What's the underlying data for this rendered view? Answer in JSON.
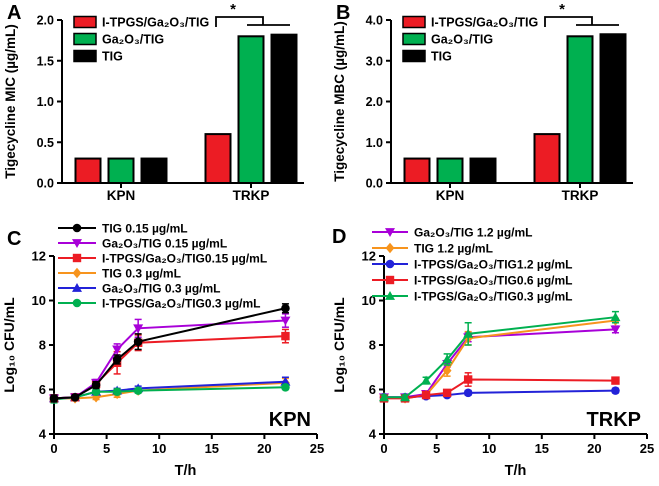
{
  "colors": {
    "red": "#EC1C24",
    "green": "#00B050",
    "black": "#000000",
    "purple": "#A800D8",
    "orange": "#F7941D",
    "blue": "#2222D8"
  },
  "chart_data": [
    {
      "id": "A",
      "panel_label": "A",
      "type": "bar",
      "ylabel": "Tigecycline MIC (µg/mL)",
      "ylim": [
        0,
        2.0
      ],
      "ytick_values": [
        0,
        0.5,
        1.0,
        1.5,
        2.0
      ],
      "ytick_labels": [
        "0.0",
        "0.5",
        "1.0",
        "1.5",
        "2.0"
      ],
      "categories": [
        "KPN",
        "TRKP"
      ],
      "series": [
        {
          "name": "I-TPGS/Ga₂O₃/TIG",
          "color": "red",
          "values": [
            0.3,
            0.6
          ]
        },
        {
          "name": "Ga₂O₃/TIG",
          "color": "green",
          "values": [
            0.3,
            1.8
          ]
        },
        {
          "name": "TIG",
          "color": "black",
          "values": [
            0.3,
            1.82
          ]
        }
      ],
      "significance_label": "*"
    },
    {
      "id": "B",
      "panel_label": "B",
      "type": "bar",
      "ylabel": "Tigecycline MBC (µg/mL)",
      "ylim": [
        0,
        4.0
      ],
      "ytick_values": [
        0,
        1.0,
        2.0,
        3.0,
        4.0
      ],
      "ytick_labels": [
        "0.0",
        "1.0",
        "2.0",
        "3.0",
        "4.0"
      ],
      "categories": [
        "KPN",
        "TRKP"
      ],
      "series": [
        {
          "name": "I-TPGS/Ga₂O₃/TIG",
          "color": "red",
          "values": [
            0.6,
            1.2
          ]
        },
        {
          "name": "Ga₂O₃/TIG",
          "color": "green",
          "values": [
            0.6,
            3.6
          ]
        },
        {
          "name": "TIG",
          "color": "black",
          "values": [
            0.6,
            3.65
          ]
        }
      ],
      "significance_label": "*"
    },
    {
      "id": "C",
      "panel_label": "C",
      "type": "line",
      "corner_label": "KPN",
      "xlabel": "T/h",
      "ylabel": "Log₁₀ CFU/mL",
      "xlim": [
        0,
        25
      ],
      "ylim": [
        4,
        12
      ],
      "xticks": [
        0,
        5,
        10,
        15,
        20,
        25
      ],
      "yticks": [
        4,
        6,
        8,
        10,
        12
      ],
      "x": [
        0,
        2,
        4,
        6,
        8,
        22
      ],
      "series": [
        {
          "name": "TIG 0.15 µg/mL",
          "color": "black",
          "marker": "circle",
          "values": [
            5.6,
            5.65,
            6.2,
            7.35,
            8.15,
            9.65
          ],
          "err": [
            0.15,
            0.1,
            0.15,
            0.2,
            0.35,
            0.2
          ]
        },
        {
          "name": "Ga₂O₃/TIG 0.15 µg/mL",
          "color": "purple",
          "marker": "triangle-down",
          "values": [
            5.6,
            5.65,
            6.3,
            7.8,
            8.75,
            9.1
          ],
          "err": [
            0.15,
            0.1,
            0.15,
            0.25,
            0.4,
            0.3
          ]
        },
        {
          "name": "I-TPGS/Ga₂O₃/TIG0.15 µg/mL",
          "color": "red",
          "marker": "square",
          "values": [
            5.6,
            5.65,
            6.25,
            7.2,
            8.1,
            8.4
          ],
          "err": [
            0.15,
            0.1,
            0.15,
            0.5,
            0.35,
            0.3
          ]
        },
        {
          "name": "TIG 0.3 µg/mL",
          "color": "orange",
          "marker": "diamond",
          "values": [
            5.6,
            5.6,
            5.65,
            5.8,
            5.95,
            6.3
          ],
          "err": [
            0.1,
            0.1,
            0.1,
            0.15,
            0.1,
            0.2
          ]
        },
        {
          "name": "Ga₂O₃/TIG 0.3 µg/mL",
          "color": "blue",
          "marker": "triangle-up",
          "values": [
            5.6,
            5.65,
            5.9,
            5.95,
            6.05,
            6.35
          ],
          "err": [
            0.1,
            0.1,
            0.1,
            0.1,
            0.1,
            0.2
          ]
        },
        {
          "name": "I-TPGS/Ga₂O₃/TIG0.3 µg/mL",
          "color": "green",
          "marker": "circle",
          "values": [
            5.55,
            5.65,
            5.9,
            5.9,
            5.95,
            6.1
          ],
          "err": [
            0.15,
            0.1,
            0.1,
            0.1,
            0.1,
            0.1
          ]
        }
      ],
      "z_order": [
        3,
        4,
        5,
        2,
        1,
        0
      ]
    },
    {
      "id": "D",
      "panel_label": "D",
      "type": "line",
      "corner_label": "TRKP",
      "xlabel": "T/h",
      "ylabel": "Log₁₀ CFU/mL",
      "xlim": [
        0,
        25
      ],
      "ylim": [
        4,
        12
      ],
      "xticks": [
        0,
        5,
        10,
        15,
        20,
        25
      ],
      "yticks": [
        4,
        6,
        8,
        10,
        12
      ],
      "x": [
        0,
        2,
        4,
        6,
        8,
        22
      ],
      "series": [
        {
          "name": "Ga₂O₃/TIG 1.2 µg/mL",
          "color": "purple",
          "marker": "triangle-down",
          "values": [
            5.65,
            5.65,
            5.8,
            7.15,
            8.35,
            8.7
          ],
          "err": [
            0.1,
            0.1,
            0.1,
            0.15,
            0.2,
            0.15
          ]
        },
        {
          "name": "TIG 1.2 µg/mL",
          "color": "orange",
          "marker": "diamond",
          "values": [
            5.65,
            5.6,
            5.75,
            6.85,
            8.3,
            9.1
          ],
          "err": [
            0.1,
            0.15,
            0.1,
            0.25,
            0.3,
            0.1
          ]
        },
        {
          "name": "I-TPGS/Ga₂O₃/TIG1.2 µg/mL",
          "color": "blue",
          "marker": "circle",
          "values": [
            5.65,
            5.65,
            5.7,
            5.75,
            5.85,
            5.95
          ],
          "err": [
            0.1,
            0.1,
            0.05,
            0.05,
            0.1,
            0.1
          ]
        },
        {
          "name": "I-TPGS/Ga₂O₃/TIG0.6 µg/mL",
          "color": "red",
          "marker": "square",
          "values": [
            5.6,
            5.6,
            5.75,
            5.85,
            6.45,
            6.4
          ],
          "err": [
            0.15,
            0.15,
            0.1,
            0.1,
            0.3,
            0.1
          ]
        },
        {
          "name": "I-TPGS/Ga₂O₃/TIG0.3 µg/mL",
          "color": "green",
          "marker": "triangle-up",
          "values": [
            5.65,
            5.65,
            6.4,
            7.35,
            8.5,
            9.25
          ],
          "err": [
            0.1,
            0.1,
            0.15,
            0.25,
            0.5,
            0.25
          ]
        }
      ],
      "z_order": [
        0,
        1,
        2,
        3,
        4
      ]
    }
  ]
}
